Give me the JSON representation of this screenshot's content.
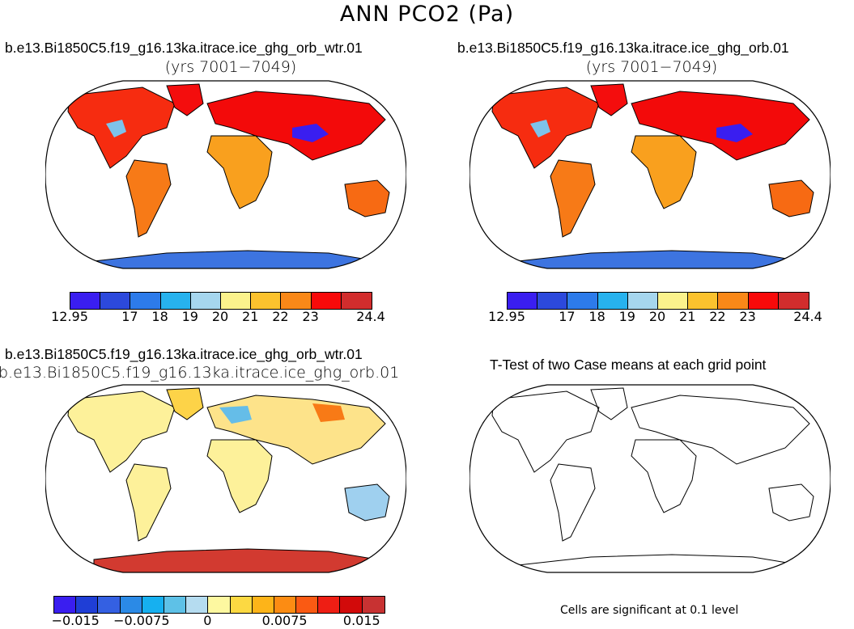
{
  "figure_title": "ANN PCO2 (Pa)",
  "panels": [
    {
      "title": "b.e13.Bi1850C5.f19_g16.13ka.itrace.ice_ghg_orb_wtr.01",
      "subtitle": "(yrs 7001−7049)"
    },
    {
      "title": "b.e13.Bi1850C5.f19_g16.13ka.itrace.ice_ghg_orb.01",
      "subtitle": "(yrs 7001−7049)"
    },
    {
      "title": "b.e13.Bi1850C5.f19_g16.13ka.itrace.ice_ghg_orb_wtr.01",
      "subtitle": "b.e13.Bi1850C5.f19_g16.13ka.itrace.ice_ghg_orb.01"
    },
    {
      "title": "T-Test of two Case means at each grid point",
      "note": "Cells are significant at 0.1 level"
    }
  ],
  "colorbar_top": {
    "colors": [
      "#3a1ef0",
      "#2c49dc",
      "#2d7bea",
      "#27b2ee",
      "#a6d6ee",
      "#fbf28c",
      "#fbc22e",
      "#f98818",
      "#f80a0a",
      "#d22d2d"
    ],
    "labels": [
      "12.95",
      "17",
      "18",
      "19",
      "20",
      "21",
      "22",
      "23",
      "24.4"
    ]
  },
  "colorbar_diff": {
    "colors": [
      "#3a1ef0",
      "#1f3ed6",
      "#3460e2",
      "#2b8ae6",
      "#16b0f0",
      "#5ec1e7",
      "#b5dcf0",
      "#fdf8a0",
      "#fcd942",
      "#fdb419",
      "#fc8c13",
      "#fa5a13",
      "#ee1e14",
      "#d20a0a",
      "#c83232"
    ],
    "labels": [
      "−0.015",
      "−0.0075",
      "0",
      "0.0075",
      "0.015"
    ]
  },
  "chart_data": {
    "type": "heatmap",
    "title": "ANN PCO2 (Pa)",
    "projection": "Robinson (global)",
    "case_mean_panels": {
      "contour_levels": [
        17,
        18,
        19,
        20,
        21,
        22,
        23
      ],
      "colorbar_min": 12.95,
      "colorbar_max": 24.4
    },
    "difference_panel": {
      "contour_levels": [
        -0.015,
        -0.0075,
        0,
        0.0075,
        0.015
      ]
    },
    "ttest_significance_level": 0.1
  }
}
